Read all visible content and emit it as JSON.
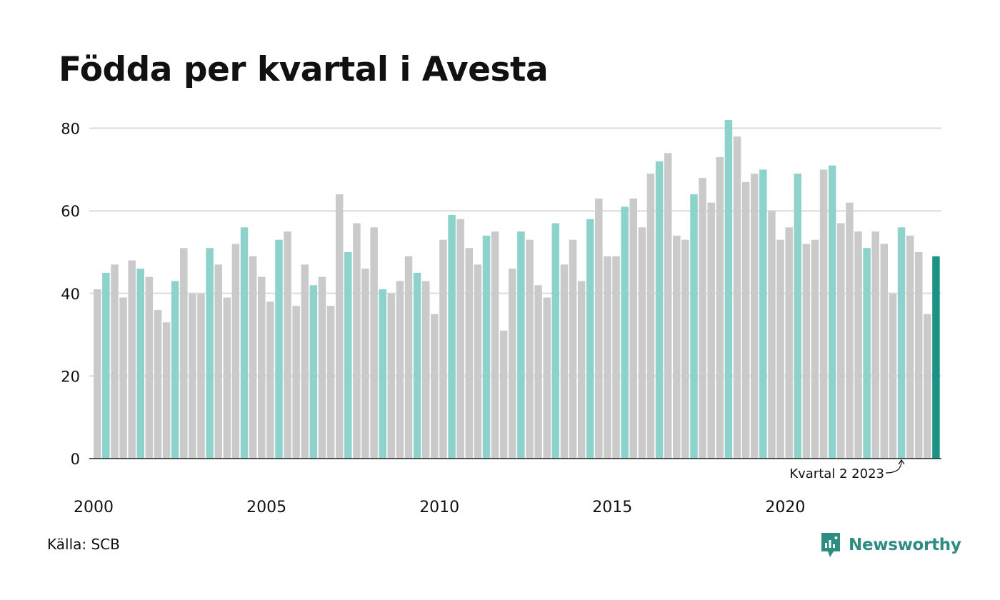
{
  "title": "Födda per kvartal i Avesta",
  "source": "Källa: SCB",
  "brand": {
    "name": "Newsworthy",
    "icon": "newsworthy-logo-icon",
    "color": "#2e8c80"
  },
  "annotation": {
    "text": "Kvartal 2 2023"
  },
  "colors": {
    "default": "#cacaca",
    "quarter2": "#8dd3cb",
    "latest": "#1b9283",
    "grid": "#e2e2e2",
    "axis": "#222222"
  },
  "chart_data": {
    "type": "bar",
    "x_ticks": [
      "2000",
      "2005",
      "2010",
      "2015",
      "2020"
    ],
    "y_ticks": [
      0,
      20,
      40,
      60,
      80
    ],
    "ylim": [
      0,
      85
    ],
    "grid": true,
    "first_period": "2000 Q1",
    "highlight": "quarter 2 of each year; latest bar darker",
    "values": [
      41,
      45,
      47,
      39,
      48,
      46,
      44,
      36,
      33,
      43,
      51,
      40,
      40,
      51,
      47,
      39,
      52,
      56,
      49,
      44,
      38,
      53,
      55,
      37,
      47,
      42,
      44,
      37,
      64,
      50,
      57,
      46,
      56,
      41,
      40,
      43,
      49,
      45,
      43,
      35,
      53,
      59,
      58,
      51,
      47,
      54,
      55,
      31,
      46,
      55,
      53,
      42,
      39,
      57,
      47,
      53,
      43,
      58,
      63,
      49,
      49,
      61,
      63,
      56,
      69,
      72,
      74,
      54,
      53,
      64,
      68,
      62,
      73,
      82,
      78,
      67,
      69,
      70,
      60,
      53,
      56,
      69,
      52,
      53,
      70,
      71,
      57,
      62,
      55,
      51,
      55,
      52,
      40,
      56,
      54,
      50,
      35,
      49
    ]
  }
}
